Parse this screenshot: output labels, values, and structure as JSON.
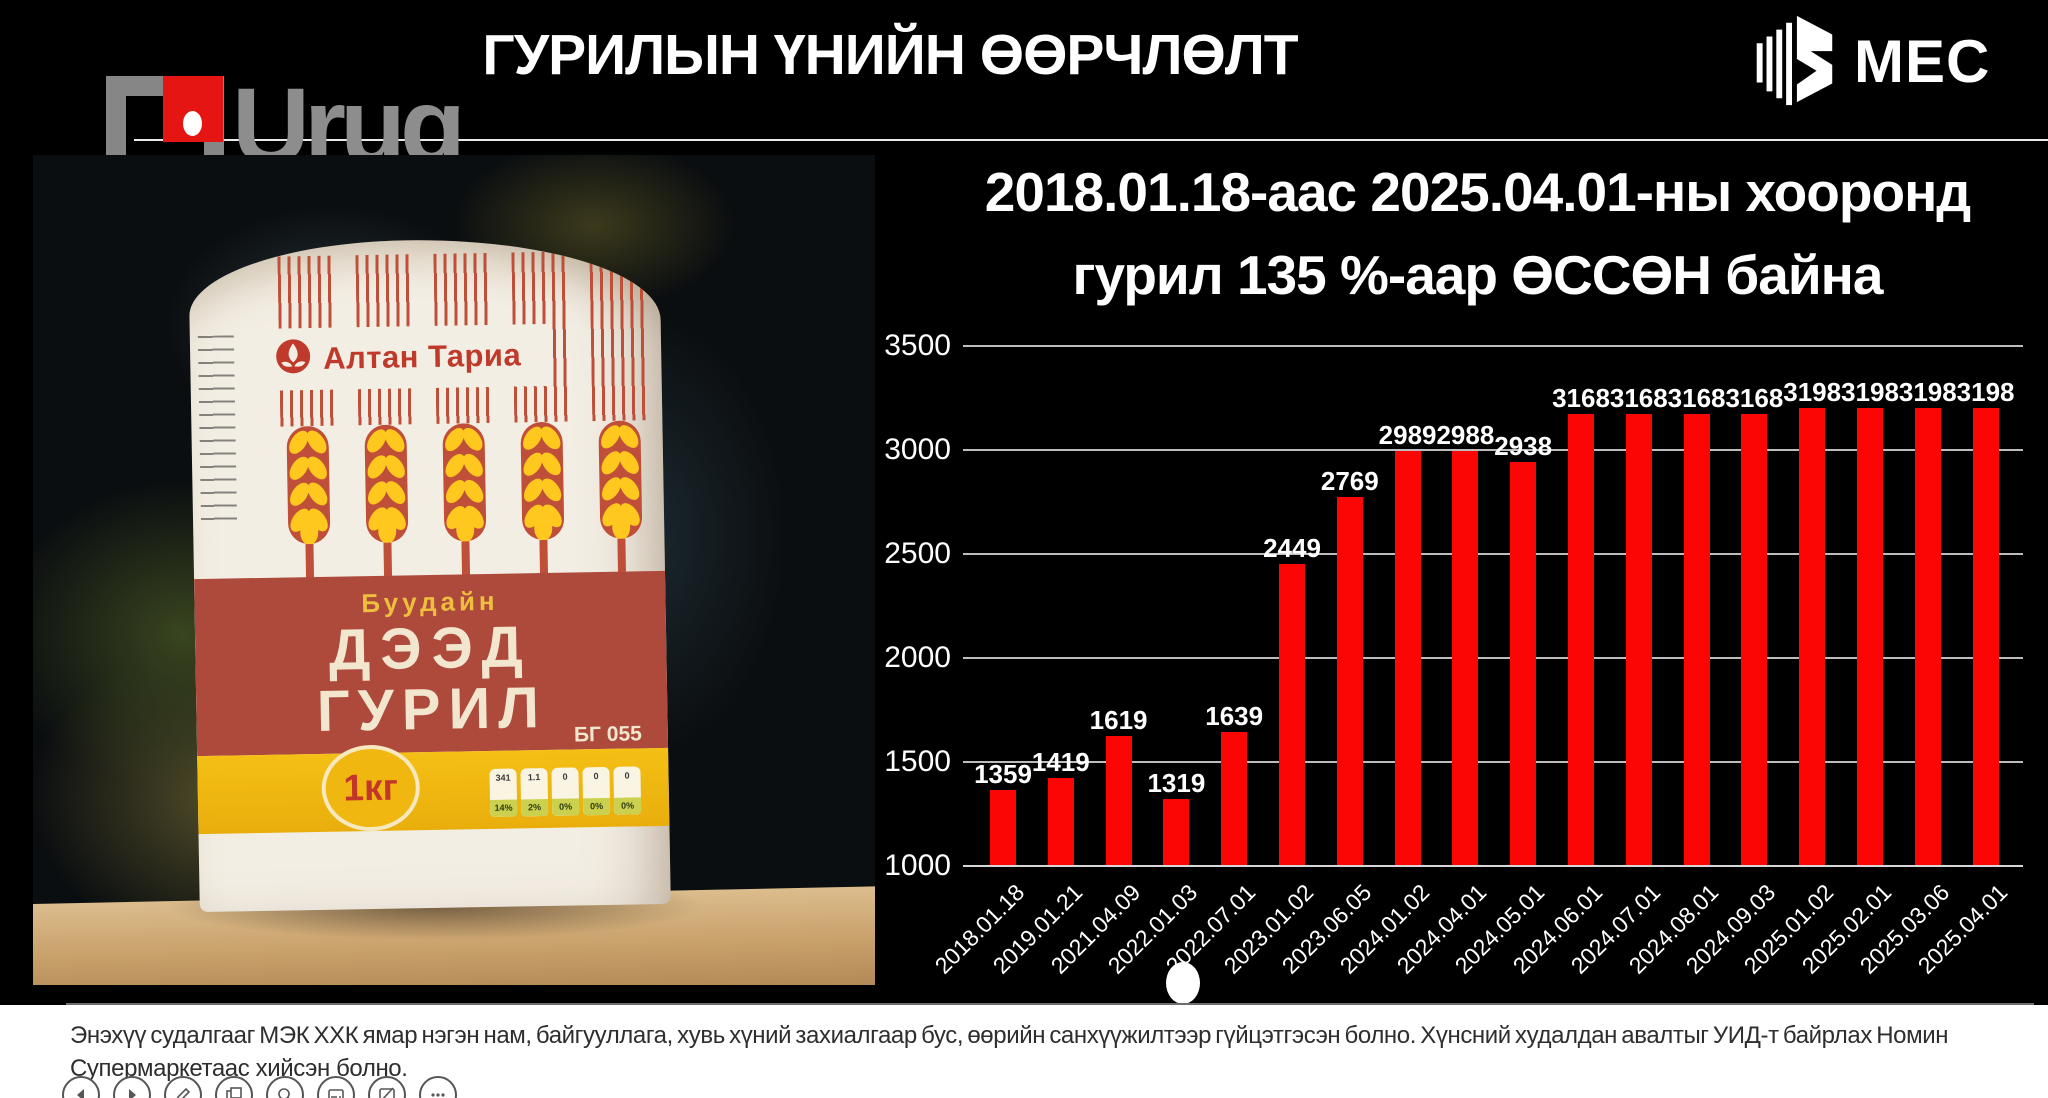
{
  "header": {
    "urug_logo_text": "Urug",
    "title": "ГУРИЛЫН ҮНИЙН ӨӨРЧЛӨЛТ",
    "mec_logo_text": "MEC"
  },
  "package": {
    "brand": "Алтан Тариа",
    "type_label": "Буудайн",
    "name_line1": "ДЭЭД",
    "name_line2": "ГУРИЛ",
    "code": "БГ 055",
    "weight": "1кг",
    "nutrition_values": [
      "341",
      "1.1",
      "0",
      "0",
      "0"
    ],
    "nutrition_percents": [
      "14%",
      "2%",
      "0%",
      "0%",
      "0%"
    ]
  },
  "chart": {
    "title_line1": "2018.01.18-аас 2025.04.01-ны хооронд",
    "title_line2": "гурил 135 %-аар ӨССӨН байна"
  },
  "chart_data": {
    "type": "bar",
    "title": "2018.01.18-аас 2025.04.01-ны хооронд гурил 135 %-аар ӨССӨН байна",
    "categories": [
      "2018.01.18",
      "2019.01.21",
      "2021.04.09",
      "2022.01.03",
      "2022.07.01",
      "2023.01.02",
      "2023.06.05",
      "2024.01.02",
      "2024.04.01",
      "2024.05.01",
      "2024.06.01",
      "2024.07.01",
      "2024.08.01",
      "2024.09.03",
      "2025.01.02",
      "2025.02.01",
      "2025.03.06",
      "2025.04.01"
    ],
    "values": [
      1359,
      1419,
      1619,
      1319,
      1639,
      2449,
      2769,
      2989,
      2988,
      2938,
      3168,
      3168,
      3168,
      3168,
      3198,
      3198,
      3198,
      3198
    ],
    "xlabel": "",
    "ylabel": "",
    "ylim": [
      1000,
      3500
    ],
    "yticks": [
      1000,
      1500,
      2000,
      2500,
      3000,
      3500
    ],
    "grid": true,
    "legend": false,
    "bar_color": "#fb0505",
    "value_labels": true
  },
  "colors": {
    "background": "#000000",
    "bar": "#fb0505",
    "package_band": "#ae4a3c",
    "package_yellow": "#f4c015",
    "logo_red": "#e41512"
  },
  "footer": {
    "disclaimer_line1": "Энэхүү судалгааг МЭК ХХК ямар нэгэн нам, байгууллага, хувь хүний захиалгаар бус, өөрийн санхүүжилтээр гүйцэтгэсэн болно. Хүнсний худалдан авалтыг УИД-т байрлах Номин",
    "disclaimer_line2": "Супермаркетаас хийсэн болно.",
    "toolbar_icons": [
      "previous-slide",
      "next-slide",
      "pen",
      "slide-sorter",
      "zoom",
      "subtitles",
      "black-screen",
      "more-options"
    ]
  }
}
